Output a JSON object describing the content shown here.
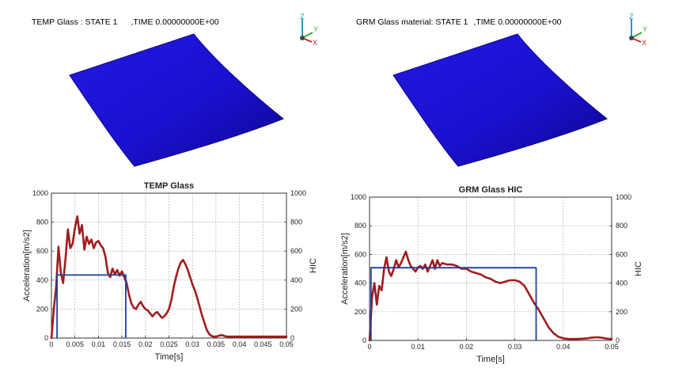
{
  "viewports": [
    {
      "title_prefix": "TEMP Glass : STATE 1",
      "title_time": ",TIME 0.00000000E+00",
      "triad": {
        "z": "Z",
        "y": "Y",
        "x": "X"
      },
      "colors": {
        "glass": "#1a0fd6",
        "glass_dark": "#0c0680"
      }
    },
    {
      "title_prefix": "GRM Glass material: STATE 1",
      "title_time": ",TIME 0.00000000E+00",
      "triad": {
        "z": "Z",
        "y": "Y",
        "x": "X"
      },
      "colors": {
        "glass": "#1a0fd6",
        "glass_dark": "#0c0680"
      }
    }
  ],
  "chart_data": [
    {
      "type": "line",
      "title": "TEMP Glass",
      "xlabel": "Time[s]",
      "ylabel": "Acceleration[m/s2]",
      "y2label": "HIC",
      "xlim": [
        0,
        0.05
      ],
      "ylim": [
        0,
        1000
      ],
      "y2lim": [
        0,
        1000
      ],
      "x_ticks": [
        "0",
        "0.005",
        "0.01",
        "0.015",
        "0.02",
        "0.025",
        "0.03",
        "0.035",
        "0.04",
        "0.045",
        "0.05"
      ],
      "y_ticks": [
        "0",
        "200",
        "400",
        "600",
        "800",
        "1000"
      ],
      "y2_ticks": [
        "0",
        "200",
        "400",
        "600",
        "800",
        "1000"
      ],
      "series": [
        {
          "name": "Acceleration",
          "color": "#a11d1d",
          "x": [
            0,
            0.0005,
            0.001,
            0.0015,
            0.002,
            0.0025,
            0.003,
            0.0035,
            0.004,
            0.0045,
            0.005,
            0.0055,
            0.006,
            0.0065,
            0.007,
            0.0075,
            0.008,
            0.0085,
            0.009,
            0.0095,
            0.01,
            0.0105,
            0.011,
            0.0115,
            0.012,
            0.0125,
            0.013,
            0.0135,
            0.014,
            0.0145,
            0.015,
            0.0155,
            0.016,
            0.0165,
            0.017,
            0.0175,
            0.018,
            0.0185,
            0.019,
            0.0195,
            0.02,
            0.0205,
            0.021,
            0.0215,
            0.022,
            0.0225,
            0.023,
            0.0235,
            0.024,
            0.0245,
            0.025,
            0.0255,
            0.026,
            0.0265,
            0.027,
            0.0275,
            0.028,
            0.0285,
            0.029,
            0.0295,
            0.03,
            0.0305,
            0.031,
            0.0315,
            0.032,
            0.0325,
            0.033,
            0.0335,
            0.034,
            0.0345,
            0.035,
            0.0355,
            0.036,
            0.0365,
            0.037,
            0.0375,
            0.038,
            0.039,
            0.04,
            0.041,
            0.042,
            0.043,
            0.044,
            0.045,
            0.046,
            0.047,
            0.048,
            0.049,
            0.05
          ],
          "y": [
            0,
            200,
            350,
            630,
            450,
            380,
            550,
            750,
            620,
            650,
            760,
            840,
            720,
            780,
            610,
            700,
            650,
            680,
            620,
            660,
            670,
            640,
            620,
            560,
            450,
            420,
            480,
            440,
            470,
            430,
            460,
            420,
            380,
            300,
            240,
            210,
            200,
            230,
            250,
            220,
            200,
            190,
            170,
            150,
            170,
            180,
            160,
            140,
            150,
            170,
            200,
            260,
            350,
            420,
            480,
            520,
            540,
            510,
            470,
            420,
            370,
            330,
            280,
            220,
            160,
            110,
            60,
            30,
            15,
            10,
            10,
            15,
            20,
            18,
            12,
            10,
            10,
            10,
            10,
            10,
            10,
            10,
            10,
            10,
            10,
            10,
            10,
            10,
            10
          ]
        },
        {
          "name": "HIC",
          "color": "#1f3f99",
          "x": [
            0.0012,
            0.0012,
            0.0158,
            0.0158
          ],
          "y": [
            0,
            435,
            435,
            0
          ]
        }
      ]
    },
    {
      "type": "line",
      "title": "GRM Glass HIC",
      "xlabel": "Time[s]",
      "ylabel": "Acceleration[m/s2]",
      "y2label": "HIC",
      "xlim": [
        0,
        0.05
      ],
      "ylim": [
        0,
        1000
      ],
      "y2lim": [
        0,
        1000
      ],
      "x_ticks": [
        "0",
        "0.01",
        "0.02",
        "0.03",
        "0.04",
        "0.05"
      ],
      "y_ticks": [
        "0",
        "200",
        "400",
        "600",
        "800",
        "1000"
      ],
      "y2_ticks": [
        "0",
        "200",
        "400",
        "600",
        "800",
        "1000"
      ],
      "series": [
        {
          "name": "Acceleration",
          "color": "#a11d1d",
          "x": [
            0,
            0.0005,
            0.001,
            0.0015,
            0.002,
            0.0025,
            0.003,
            0.0035,
            0.004,
            0.0045,
            0.005,
            0.0055,
            0.006,
            0.0065,
            0.007,
            0.0075,
            0.008,
            0.0085,
            0.009,
            0.0095,
            0.01,
            0.0105,
            0.011,
            0.0115,
            0.012,
            0.0125,
            0.013,
            0.0135,
            0.014,
            0.0145,
            0.015,
            0.016,
            0.017,
            0.018,
            0.019,
            0.02,
            0.021,
            0.022,
            0.023,
            0.024,
            0.025,
            0.026,
            0.027,
            0.028,
            0.029,
            0.03,
            0.031,
            0.032,
            0.033,
            0.034,
            0.035,
            0.036,
            0.037,
            0.038,
            0.039,
            0.04,
            0.041,
            0.042,
            0.043,
            0.044,
            0.045,
            0.046,
            0.047,
            0.048,
            0.049,
            0.05
          ],
          "y": [
            0,
            300,
            400,
            250,
            380,
            350,
            500,
            580,
            480,
            450,
            500,
            560,
            510,
            540,
            580,
            620,
            560,
            520,
            500,
            480,
            510,
            520,
            500,
            530,
            480,
            520,
            560,
            500,
            560,
            520,
            540,
            530,
            530,
            520,
            500,
            500,
            480,
            470,
            460,
            440,
            430,
            410,
            400,
            410,
            420,
            420,
            410,
            380,
            320,
            260,
            210,
            150,
            90,
            50,
            25,
            15,
            10,
            10,
            10,
            12,
            15,
            20,
            22,
            18,
            12,
            10
          ]
        },
        {
          "name": "HIC",
          "color": "#1f3f99",
          "x": [
            0.0003,
            0.0003,
            0.0344,
            0.0344
          ],
          "y": [
            0,
            507,
            507,
            0
          ]
        }
      ]
    }
  ]
}
